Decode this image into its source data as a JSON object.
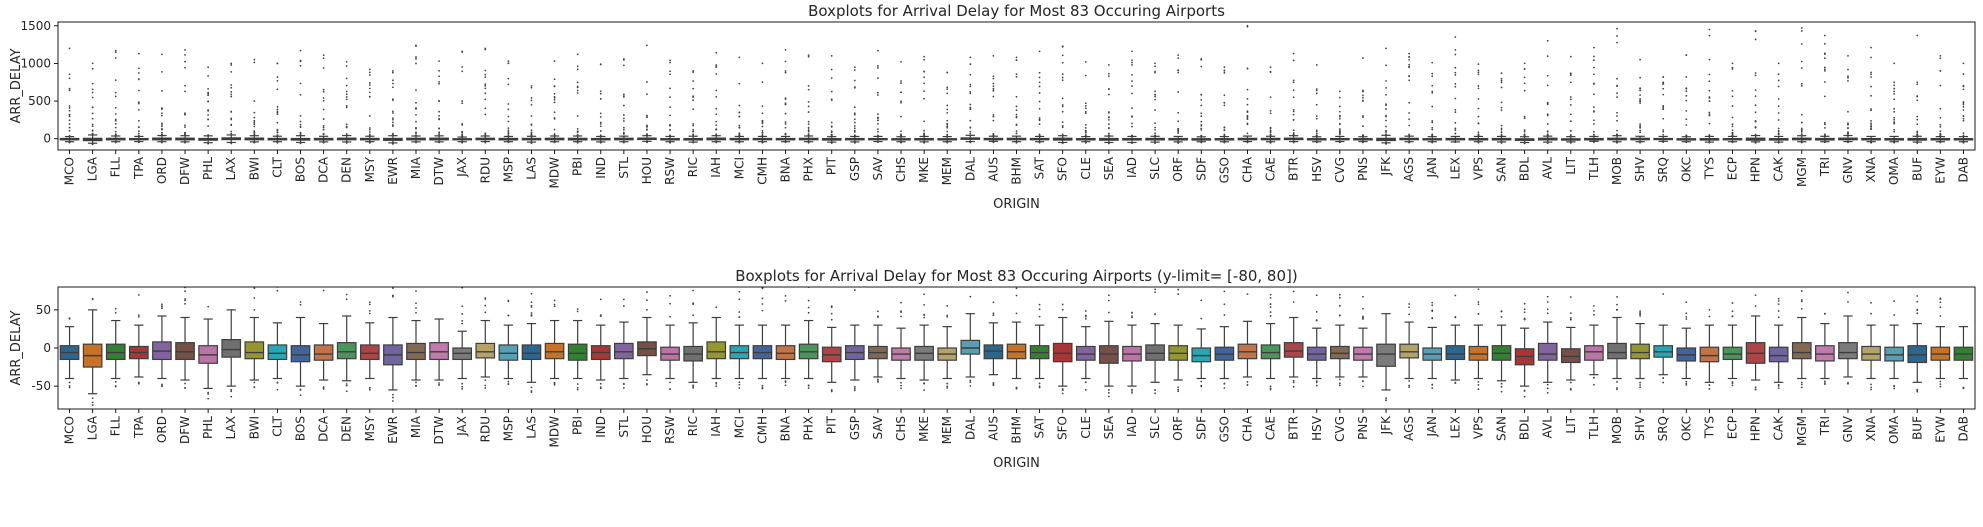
{
  "chart_data": [
    {
      "type": "box",
      "title": "Boxplots for Arrival Delay for Most 83 Occuring Airports",
      "xlabel": "ORIGIN",
      "ylabel": "ARR_DELAY",
      "ylim": [
        -150,
        1550
      ],
      "yticks": [
        0,
        500,
        1000,
        1500
      ],
      "grid": false,
      "legend": "none",
      "categories": [
        "MCO",
        "LGA",
        "FLL",
        "TPA",
        "ORD",
        "DFW",
        "PHL",
        "LAX",
        "BWI",
        "CLT",
        "BOS",
        "DCA",
        "DEN",
        "MSY",
        "EWR",
        "MIA",
        "DTW",
        "JAX",
        "RDU",
        "MSP",
        "LAS",
        "MDW",
        "PBI",
        "IND",
        "STL",
        "HOU",
        "RSW",
        "RIC",
        "IAH",
        "MCI",
        "CMH",
        "BNA",
        "PHX",
        "PIT",
        "GSP",
        "SAV",
        "CHS",
        "MKE",
        "MEM",
        "DAL",
        "AUS",
        "BHM",
        "SAT",
        "SFO",
        "CLE",
        "SEA",
        "IAD",
        "SLC",
        "ORF",
        "SDF",
        "GSO",
        "CHA",
        "CAE",
        "BTR",
        "HSV",
        "CVG",
        "PNS",
        "JFK",
        "AGS",
        "JAN",
        "LEX",
        "VPS",
        "SAN",
        "BDL",
        "AVL",
        "LIT",
        "TLH",
        "MOB",
        "SHV",
        "SRQ",
        "OKC",
        "TYS",
        "ECP",
        "HPN",
        "CAK",
        "MGM",
        "TRI",
        "GNV",
        "XNA",
        "OMA",
        "BUF",
        "EYW",
        "DAB"
      ],
      "max_outlier": [
        1200,
        1000,
        1170,
        1130,
        1120,
        1180,
        950,
        1000,
        1050,
        1000,
        1170,
        1110,
        1020,
        920,
        900,
        1230,
        1030,
        1150,
        1200,
        1030,
        700,
        1030,
        1120,
        990,
        1060,
        1240,
        1040,
        900,
        1140,
        1080,
        1000,
        1180,
        1110,
        1100,
        950,
        1170,
        1020,
        1090,
        880,
        1080,
        1100,
        1080,
        1160,
        1220,
        1020,
        980,
        1160,
        1000,
        1110,
        1060,
        950,
        1500,
        950,
        1130,
        980,
        630,
        1070,
        1200,
        1130,
        1010,
        1350,
        990,
        870,
        1000,
        1300,
        1090,
        1210,
        1460,
        1050,
        820,
        1110,
        1450,
        1000,
        1430,
        1000,
        1470,
        1370,
        1100,
        1210,
        1000,
        1370,
        1100,
        1000
      ],
      "series": [
        {
          "name": "",
          "q1": [
            -15,
            -25,
            -15,
            -14,
            -15,
            -15,
            -20,
            -12,
            -14,
            -15,
            -18,
            -16,
            -14,
            -15,
            -22,
            -15,
            -15,
            -15,
            -13,
            -16,
            -15,
            -14,
            -16,
            -15,
            -14,
            -10,
            -16,
            -17,
            -14,
            -14,
            -14,
            -15,
            -14,
            -18,
            -15,
            -14,
            -16,
            -16,
            -16,
            -8,
            -14,
            -14,
            -14,
            -18,
            -16,
            -20,
            -17,
            -16,
            -16,
            -18,
            -16,
            -14,
            -14,
            -12,
            -16,
            -14,
            -16,
            -24,
            -13,
            -16,
            -15,
            -16,
            -16,
            -22,
            -16,
            -19,
            -16,
            -14,
            -14,
            -12,
            -17,
            -18,
            -15,
            -20,
            -18,
            -14,
            -17,
            -14,
            -16,
            -17,
            -19,
            -16,
            -16
          ],
          "median": [
            -6,
            -10,
            -6,
            -6,
            -4,
            -5,
            -9,
            -2,
            -6,
            -7,
            -9,
            -8,
            -5,
            -7,
            -9,
            -6,
            -5,
            -7,
            -5,
            -7,
            -7,
            -5,
            -7,
            -6,
            -5,
            -1,
            -8,
            -8,
            -5,
            -6,
            -6,
            -7,
            -5,
            -9,
            -6,
            -6,
            -8,
            -7,
            -8,
            0,
            -4,
            -5,
            -6,
            -7,
            -8,
            -8,
            -8,
            -7,
            -7,
            -10,
            -8,
            -5,
            -6,
            -4,
            -8,
            -7,
            -8,
            -8,
            -5,
            -8,
            -8,
            -8,
            -7,
            -11,
            -8,
            -11,
            -5,
            -6,
            -6,
            -5,
            -9,
            -10,
            -8,
            -7,
            -10,
            -6,
            -8,
            -6,
            -8,
            -9,
            -9,
            -8,
            -8
          ],
          "q3": [
            3,
            5,
            5,
            2,
            8,
            7,
            3,
            11,
            8,
            4,
            3,
            4,
            7,
            4,
            4,
            6,
            7,
            0,
            6,
            4,
            4,
            6,
            5,
            3,
            6,
            8,
            1,
            2,
            8,
            3,
            3,
            3,
            5,
            1,
            3,
            2,
            0,
            2,
            0,
            10,
            4,
            5,
            3,
            6,
            2,
            3,
            2,
            4,
            3,
            0,
            1,
            5,
            4,
            7,
            1,
            2,
            1,
            5,
            5,
            0,
            3,
            2,
            3,
            -1,
            6,
            -1,
            3,
            6,
            5,
            3,
            0,
            1,
            1,
            7,
            1,
            7,
            3,
            7,
            2,
            1,
            3,
            1,
            1
          ],
          "whisker_low": [
            -40,
            -60,
            -40,
            -38,
            -40,
            -42,
            -53,
            -50,
            -42,
            -40,
            -50,
            -42,
            -43,
            -40,
            -55,
            -42,
            -42,
            -40,
            -38,
            -40,
            -45,
            -40,
            -40,
            -42,
            -40,
            -35,
            -40,
            -45,
            -40,
            -40,
            -40,
            -40,
            -40,
            -45,
            -42,
            -38,
            -40,
            -42,
            -40,
            -38,
            -35,
            -40,
            -40,
            -50,
            -40,
            -50,
            -50,
            -45,
            -42,
            -40,
            -40,
            -38,
            -40,
            -38,
            -40,
            -38,
            -38,
            -55,
            -40,
            -40,
            -42,
            -40,
            -43,
            -50,
            -45,
            -42,
            -35,
            -40,
            -40,
            -35,
            -40,
            -45,
            -40,
            -42,
            -45,
            -40,
            -40,
            -38,
            -40,
            -40,
            -45,
            -40,
            -40
          ],
          "whisker_high": [
            28,
            50,
            36,
            30,
            42,
            40,
            38,
            50,
            40,
            33,
            40,
            32,
            42,
            33,
            40,
            36,
            38,
            22,
            36,
            30,
            32,
            36,
            36,
            30,
            34,
            40,
            30,
            33,
            40,
            30,
            30,
            30,
            36,
            27,
            30,
            30,
            26,
            30,
            28,
            45,
            33,
            34,
            30,
            40,
            28,
            35,
            30,
            32,
            30,
            25,
            28,
            35,
            32,
            40,
            26,
            30,
            26,
            45,
            34,
            27,
            30,
            30,
            30,
            26,
            34,
            27,
            30,
            40,
            32,
            30,
            26,
            30,
            30,
            42,
            30,
            40,
            32,
            42,
            30,
            30,
            32,
            28,
            28
          ]
        }
      ],
      "colors": [
        "#3274a1",
        "#e1812c",
        "#3a923a",
        "#c03d3e",
        "#9372b2",
        "#845b53",
        "#d684bd",
        "#7f7f7f",
        "#a9aa35",
        "#2ebdcd",
        "#4c72b0",
        "#dd8452",
        "#55a868",
        "#c44e52",
        "#8172b3",
        "#937860",
        "#da8bc3",
        "#8c8c8c",
        "#ccb974",
        "#64b5cd"
      ]
    },
    {
      "type": "box",
      "title": "Boxplots for Arrival Delay for Most 83 Occuring Airports (y-limit= [-80, 80])",
      "xlabel": "ORIGIN",
      "ylabel": "ARR_DELAY",
      "ylim": [
        -80,
        80
      ],
      "yticks": [
        -50,
        0,
        50
      ],
      "grid": false,
      "legend": "none"
    }
  ]
}
